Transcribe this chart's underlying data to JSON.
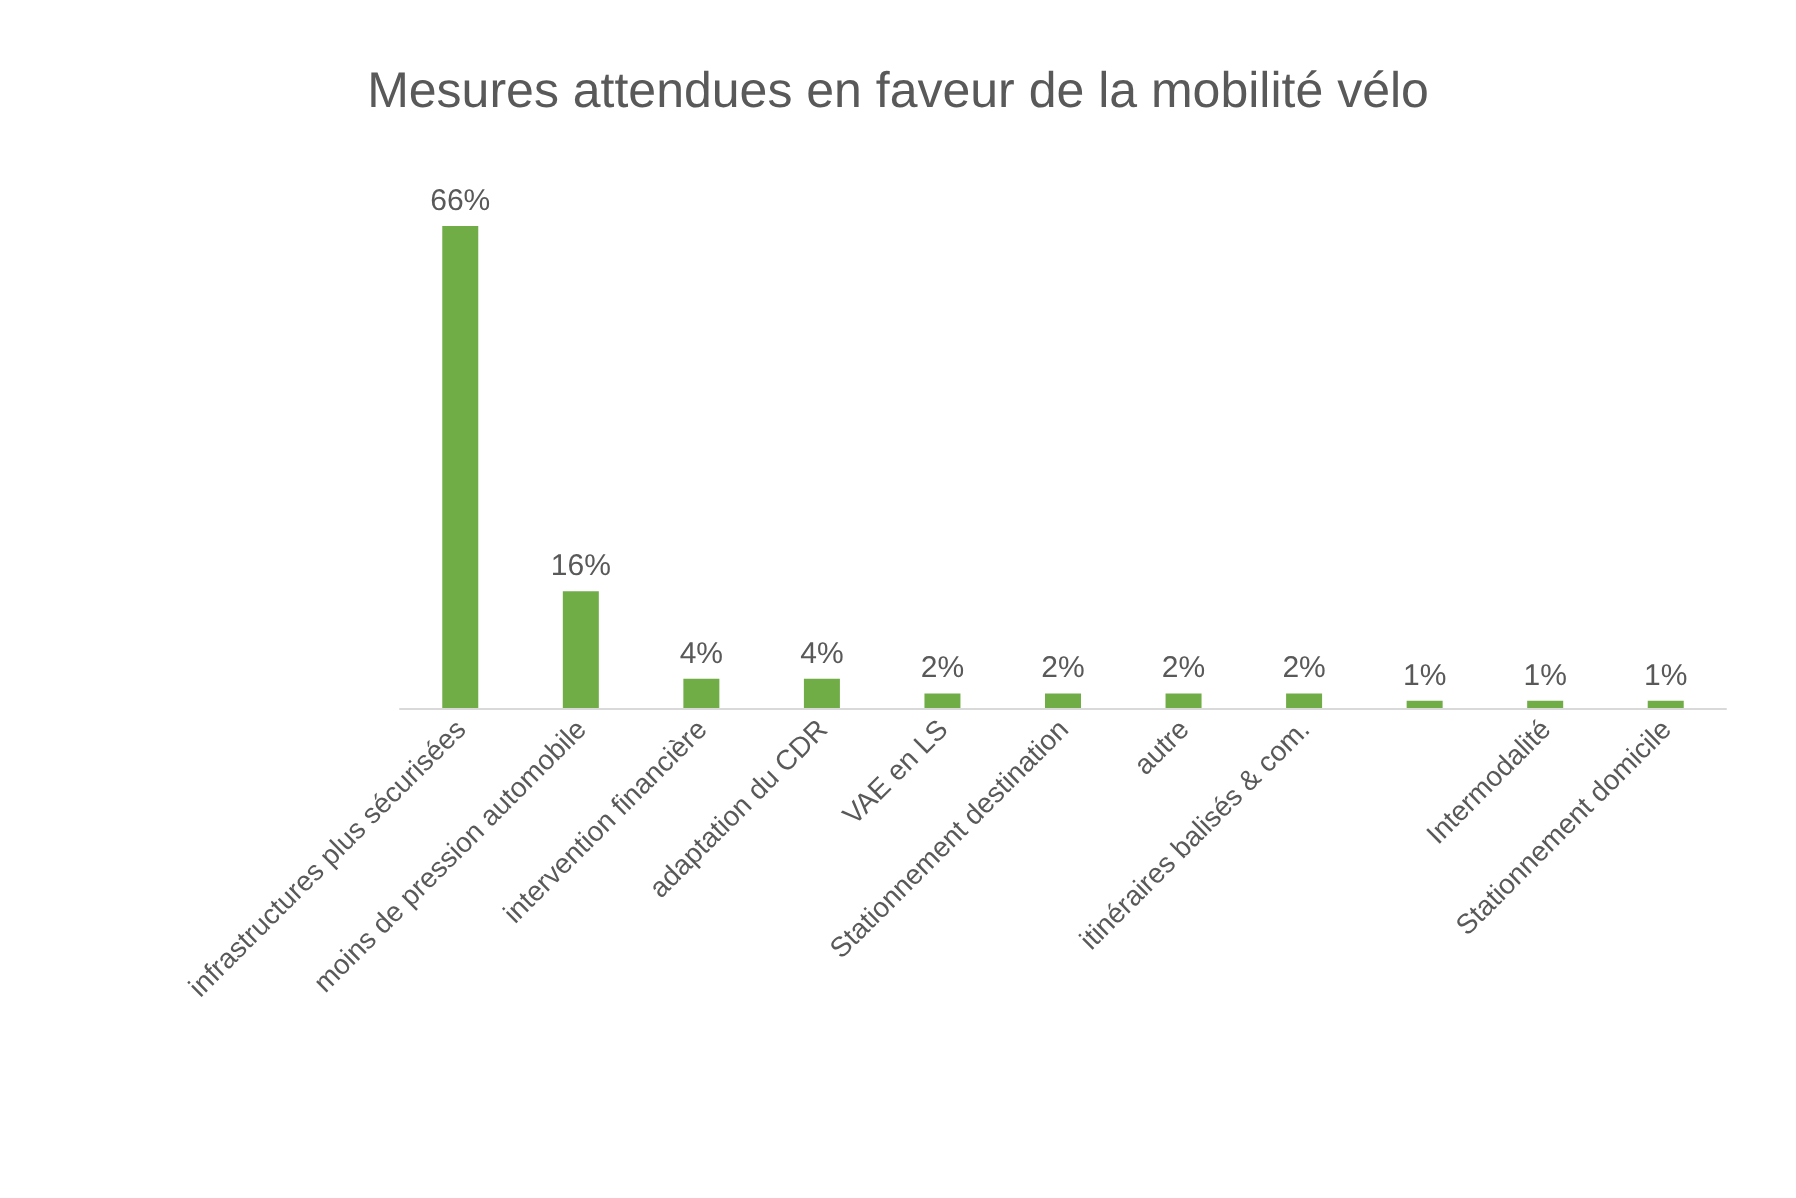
{
  "chart_data": {
    "type": "bar",
    "title": "Mesures attendues en faveur de la mobilité vélo",
    "categories": [
      "infrastructures plus sécurisées",
      "moins de pression automobile",
      "intervention financière",
      "adaptation du CDR",
      "VAE en LS",
      "Stationnement destination",
      "autre",
      "itinéraires balisés & com.",
      null,
      "Intermodalité",
      "Stationnement domicile"
    ],
    "values": [
      66,
      16,
      4,
      4,
      2,
      2,
      2,
      2,
      1,
      1,
      1
    ],
    "value_labels": [
      "66%",
      "16%",
      "4%",
      "4%",
      "2%",
      "2%",
      "2%",
      "2%",
      "1%",
      "1%",
      "1%"
    ],
    "color": "#70ad47"
  }
}
